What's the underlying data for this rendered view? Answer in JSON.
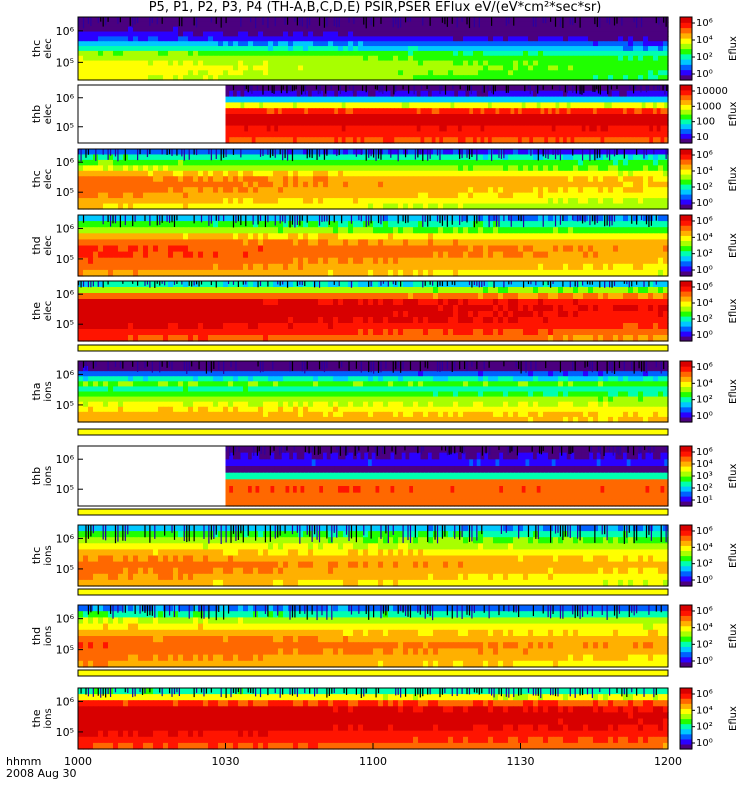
{
  "title": "P5, P1, P2, P3, P4 (TH-A,B,C,D,E) PSIR,PSER EFlux eV/(eV*cm²*sec*sr)",
  "footer": {
    "label": "hhmm",
    "date": "2008 Aug 30"
  },
  "colors": {
    "colormap": [
      "#4b007f",
      "#2a00ff",
      "#0060ff",
      "#00c8ff",
      "#00ffb0",
      "#20ff00",
      "#a8ff00",
      "#ffff00",
      "#ffb000",
      "#ff6800",
      "#ff1400",
      "#d80000"
    ]
  },
  "chart_data": {
    "type": "heatmap",
    "x_ticks": [
      "1000",
      "1030",
      "1100",
      "1130",
      "1200"
    ],
    "x_range": [
      "1000",
      "1200"
    ],
    "colorbar_label": "Eflux",
    "panels": [
      {
        "label": [
          "thc",
          "elec"
        ],
        "ticks": [
          "10⁶",
          "10⁵"
        ],
        "colorbar": [
          "10⁶",
          "10⁴",
          "10²",
          "10⁰"
        ],
        "gap_end": null,
        "profile": [
          0.05,
          0.06,
          0.08,
          0.12,
          0.18,
          0.3,
          0.4,
          0.52,
          0.58,
          0.62,
          0.64,
          0.63,
          0.62
        ],
        "decay": 0.15,
        "fill_ratio": 0.88
      },
      {
        "label": [
          "thb",
          "elec"
        ],
        "ticks": [
          "10⁶",
          "10⁵"
        ],
        "colorbar": [
          "10000",
          "1000",
          "100",
          "10"
        ],
        "gap_end": "1030",
        "profile": [
          0.05,
          0.1,
          0.3,
          0.6,
          0.85,
          0.95,
          0.95,
          0.9,
          0.86,
          0.82
        ],
        "decay": 0.0,
        "fill_ratio": 0.9
      },
      {
        "label": [
          "thc",
          "elec"
        ],
        "ticks": [
          "10⁶",
          "10⁵"
        ],
        "colorbar": [
          "10⁶",
          "10⁴",
          "10²",
          "10⁰"
        ],
        "gap_end": null,
        "profile": [
          0.2,
          0.4,
          0.5,
          0.58,
          0.7,
          0.78,
          0.8,
          0.78,
          0.76,
          0.72,
          0.68
        ],
        "decay": 0.12,
        "fill_ratio": 0.86
      },
      {
        "label": [
          "thd",
          "elec"
        ],
        "ticks": [
          "10⁶",
          "10⁵"
        ],
        "colorbar": [
          "10⁶",
          "10⁴",
          "10²",
          "10⁰"
        ],
        "gap_end": null,
        "profile": [
          0.3,
          0.45,
          0.55,
          0.7,
          0.8,
          0.85,
          0.85,
          0.82,
          0.8,
          0.76
        ],
        "decay": 0.12,
        "fill_ratio": 0.86
      },
      {
        "label": [
          "the",
          "elec"
        ],
        "ticks": [
          "10⁶",
          "10⁵"
        ],
        "colorbar": [
          "10⁶",
          "10⁴",
          "10²",
          "10⁰"
        ],
        "gap_end": null,
        "profile": [
          0.35,
          0.55,
          0.8,
          0.95,
          0.98,
          0.98,
          0.97,
          0.94,
          0.9,
          0.85
        ],
        "decay": 0.08,
        "fill_ratio": 0.95
      },
      {
        "label": [
          "tha",
          "ions"
        ],
        "ticks": [
          "10⁶",
          "10⁵"
        ],
        "colorbar": [
          "10⁶",
          "10⁴",
          "10²",
          "10⁰"
        ],
        "gap_end": null,
        "profile": [
          0.05,
          0.06,
          0.2,
          0.35,
          0.5,
          0.4,
          0.45,
          0.55,
          0.6,
          0.66,
          0.7,
          0.72
        ],
        "decay": 0.03,
        "fill_ratio": 0.85
      },
      {
        "label": [
          "thb",
          "ions"
        ],
        "ticks": [
          "10⁶",
          "10⁵"
        ],
        "colorbar": [
          "10⁶",
          "10⁴",
          "10³",
          "10²",
          "10¹"
        ],
        "gap_end": "1030",
        "profile": [
          0.05,
          0.08,
          0.15,
          0.05,
          0.38,
          0.8,
          0.82,
          0.8,
          0.8
        ],
        "decay": 0.0,
        "fill_ratio": 0.9
      },
      {
        "label": [
          "thc",
          "ions"
        ],
        "ticks": [
          "10⁶",
          "10⁵"
        ],
        "colorbar": [
          "10⁶",
          "10⁴",
          "10²",
          "10⁰"
        ],
        "gap_end": null,
        "profile": [
          0.3,
          0.45,
          0.55,
          0.62,
          0.7,
          0.76,
          0.8,
          0.78,
          0.76,
          0.72
        ],
        "decay": 0.1,
        "fill_ratio": 0.75
      },
      {
        "label": [
          "thd",
          "ions"
        ],
        "ticks": [
          "10⁶",
          "10⁵"
        ],
        "colorbar": [
          "10⁶",
          "10⁴",
          "10²",
          "10⁰"
        ],
        "gap_end": null,
        "profile": [
          0.25,
          0.42,
          0.58,
          0.66,
          0.72,
          0.78,
          0.82,
          0.8,
          0.77,
          0.74
        ],
        "decay": 0.08,
        "fill_ratio": 0.82
      },
      {
        "label": [
          "the",
          "ions"
        ],
        "ticks": [
          "10⁶",
          "10⁵"
        ],
        "colorbar": [
          "10⁶",
          "10⁴",
          "10²",
          "10⁰"
        ],
        "gap_end": null,
        "profile": [
          0.4,
          0.62,
          0.85,
          0.95,
          0.98,
          0.98,
          0.96,
          0.92,
          0.88,
          0.84
        ],
        "decay": 0.05,
        "fill_ratio": 0.9
      }
    ]
  }
}
